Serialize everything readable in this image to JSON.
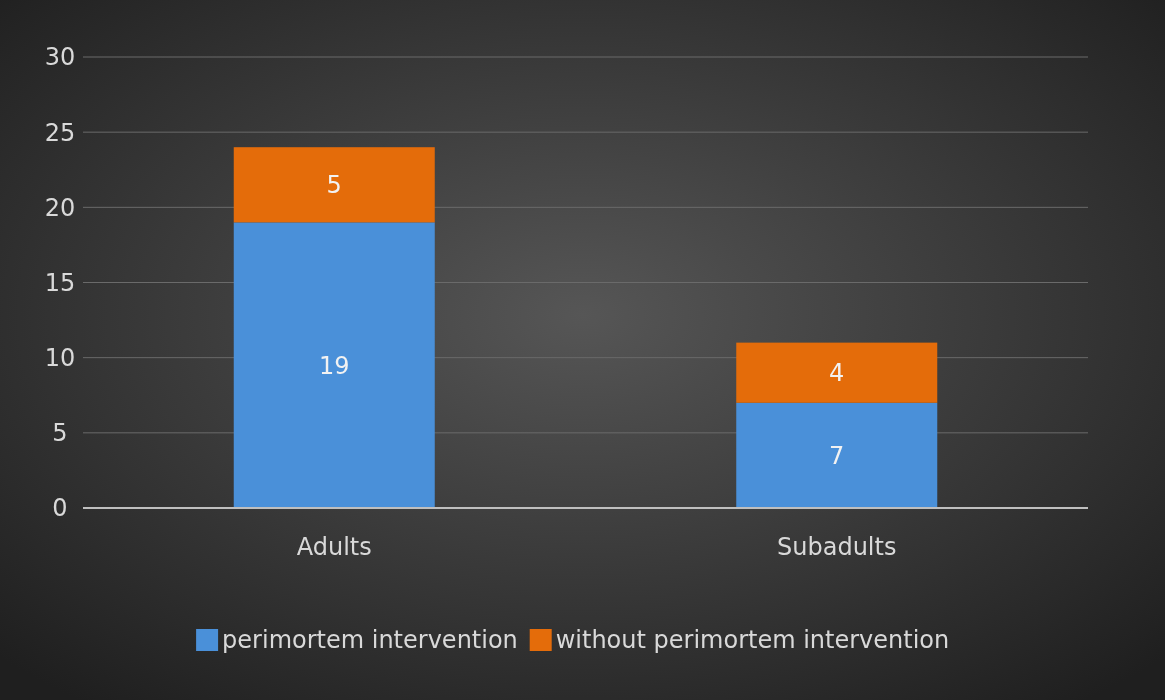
{
  "chart_data": {
    "type": "bar",
    "stacked": true,
    "categories": [
      "Adults",
      "Subadults"
    ],
    "series": [
      {
        "name": "perimortem intervention",
        "color": "#4a90d9",
        "values": [
          19,
          7
        ]
      },
      {
        "name": "without perimortem intervention",
        "color": "#e46c0a",
        "values": [
          5,
          4
        ]
      }
    ],
    "ylim": [
      0,
      30
    ],
    "yticks": [
      0,
      5,
      10,
      15,
      20,
      25,
      30
    ],
    "grid": "y",
    "legend": "bottom",
    "data_labels": true
  }
}
